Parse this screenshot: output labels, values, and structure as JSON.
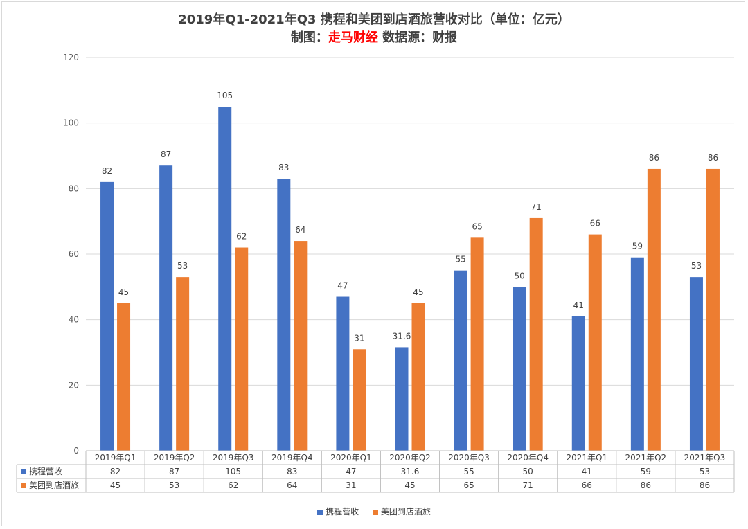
{
  "title_line1": "2019年Q1-2021年Q3 携程和美团到店酒旅营收对比（单位：亿元）",
  "title_line2": {
    "prefix": "制图：",
    "brand": "走马财经",
    "suffix": "  数据源：财报"
  },
  "colors": {
    "ctrip": "#4472c4",
    "meituan": "#ed7d31"
  },
  "chart_data": {
    "type": "bar",
    "categories": [
      "2019年Q1",
      "2019年Q2",
      "2019年Q3",
      "2019年Q4",
      "2020年Q1",
      "2020年Q2",
      "2020年Q3",
      "2020年Q4",
      "2021年Q1",
      "2021年Q2",
      "2021年Q3"
    ],
    "series": [
      {
        "name": "携程营收",
        "values": [
          82,
          87,
          105,
          83,
          47,
          31.6,
          55,
          50,
          41,
          59,
          53
        ]
      },
      {
        "name": "美团到店酒旅",
        "values": [
          45,
          53,
          62,
          64,
          31,
          45,
          65,
          71,
          66,
          86,
          86
        ]
      }
    ],
    "ylim": [
      0,
      120
    ],
    "yticks": [
      0,
      20,
      40,
      60,
      80,
      100,
      120
    ],
    "grid": true,
    "legend": "bottom",
    "data_table": true
  }
}
